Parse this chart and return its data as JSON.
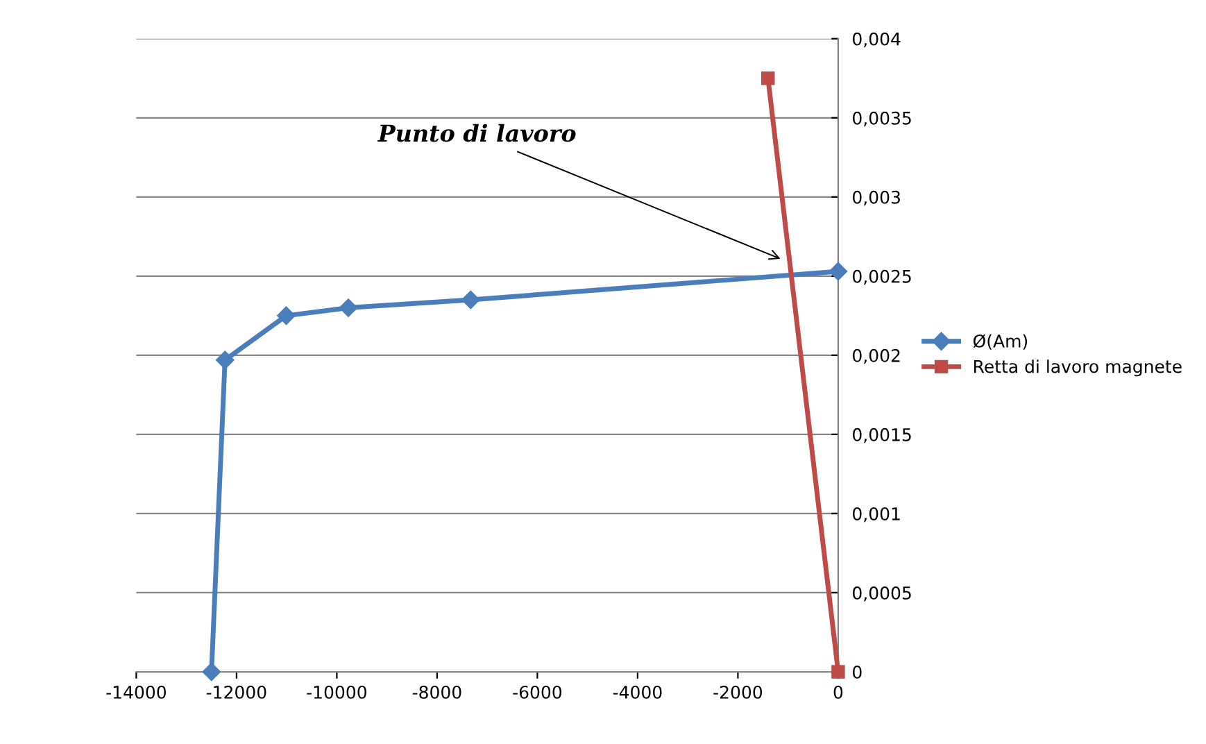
{
  "chart_data": {
    "type": "line",
    "x": [
      -12500,
      -12230,
      -11010,
      -9770,
      -7330,
      0
    ],
    "series": [
      {
        "name": "Ø(Am)",
        "color": "#4a7ebb",
        "marker": "diamond",
        "values": [
          0,
          0.00197,
          0.00225,
          0.0023,
          0.00235,
          0.00253
        ]
      },
      {
        "name": "Retta di lavoro magnete",
        "color": "#be4b48",
        "marker": "square",
        "x": [
          -1400,
          0
        ],
        "values": [
          0.00375,
          0
        ]
      }
    ],
    "xlim": [
      -14000,
      0
    ],
    "xticks": [
      -14000,
      -12000,
      -10000,
      -8000,
      -6000,
      -4000,
      -2000,
      0
    ],
    "ylim": [
      0,
      0.004
    ],
    "yticks": [
      {
        "value": 0,
        "label": "0"
      },
      {
        "value": 0.0005,
        "label": "0,0005"
      },
      {
        "value": 0.001,
        "label": "0,001"
      },
      {
        "value": 0.0015,
        "label": "0,0015"
      },
      {
        "value": 0.002,
        "label": "0,002"
      },
      {
        "value": 0.0025,
        "label": "0,0025"
      },
      {
        "value": 0.003,
        "label": "0,003"
      },
      {
        "value": 0.0035,
        "label": "0,0035"
      },
      {
        "value": 0.004,
        "label": "0,004"
      }
    ],
    "annotations": [
      {
        "text": "Punto di lavoro",
        "x": -1080,
        "y": 0.0026
      }
    ],
    "grid": "y",
    "legend": "right",
    "line_style": "solid"
  }
}
